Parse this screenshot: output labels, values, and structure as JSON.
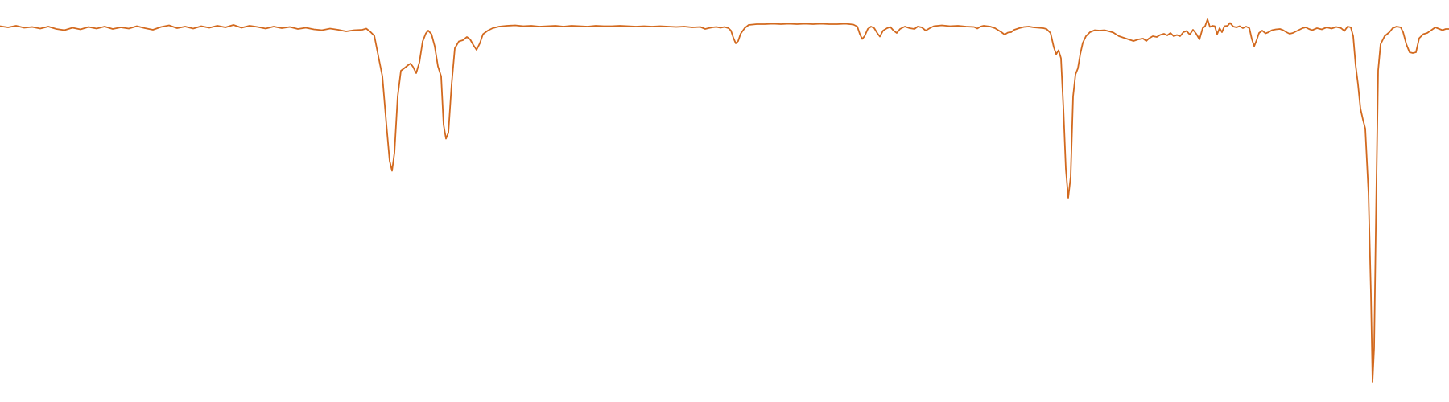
{
  "chart_data": {
    "type": "line",
    "title": "",
    "xlabel": "",
    "ylabel": "",
    "grid": false,
    "legend": "none",
    "xlim": [
      0,
      1800
    ],
    "ylim": [
      0,
      1
    ],
    "series": [
      {
        "color": "#d2691e",
        "points": [
          [
            0,
            0.935
          ],
          [
            10,
            0.932
          ],
          [
            20,
            0.936
          ],
          [
            30,
            0.931
          ],
          [
            40,
            0.933
          ],
          [
            50,
            0.929
          ],
          [
            60,
            0.934
          ],
          [
            70,
            0.928
          ],
          [
            80,
            0.925
          ],
          [
            90,
            0.931
          ],
          [
            100,
            0.927
          ],
          [
            110,
            0.933
          ],
          [
            120,
            0.929
          ],
          [
            130,
            0.934
          ],
          [
            140,
            0.928
          ],
          [
            150,
            0.932
          ],
          [
            160,
            0.929
          ],
          [
            170,
            0.935
          ],
          [
            180,
            0.93
          ],
          [
            190,
            0.926
          ],
          [
            200,
            0.933
          ],
          [
            210,
            0.937
          ],
          [
            220,
            0.93
          ],
          [
            230,
            0.934
          ],
          [
            240,
            0.929
          ],
          [
            250,
            0.935
          ],
          [
            260,
            0.931
          ],
          [
            270,
            0.936
          ],
          [
            280,
            0.932
          ],
          [
            290,
            0.938
          ],
          [
            300,
            0.931
          ],
          [
            310,
            0.936
          ],
          [
            320,
            0.933
          ],
          [
            330,
            0.929
          ],
          [
            340,
            0.934
          ],
          [
            350,
            0.93
          ],
          [
            360,
            0.933
          ],
          [
            370,
            0.928
          ],
          [
            380,
            0.931
          ],
          [
            390,
            0.927
          ],
          [
            400,
            0.925
          ],
          [
            410,
            0.929
          ],
          [
            420,
            0.926
          ],
          [
            430,
            0.922
          ],
          [
            440,
            0.925
          ],
          [
            450,
            0.926
          ],
          [
            455,
            0.929
          ],
          [
            460,
            0.921
          ],
          [
            465,
            0.911
          ],
          [
            470,
            0.86
          ],
          [
            475,
            0.81
          ],
          [
            480,
            0.69
          ],
          [
            484,
            0.6
          ],
          [
            487,
            0.575
          ],
          [
            490,
            0.62
          ],
          [
            494,
            0.76
          ],
          [
            498,
            0.824
          ],
          [
            502,
            0.83
          ],
          [
            507,
            0.838
          ],
          [
            510,
            0.842
          ],
          [
            513,
            0.834
          ],
          [
            517,
            0.818
          ],
          [
            521,
            0.845
          ],
          [
            525,
            0.897
          ],
          [
            529,
            0.917
          ],
          [
            532,
            0.924
          ],
          [
            536,
            0.915
          ],
          [
            540,
            0.885
          ],
          [
            544,
            0.835
          ],
          [
            548,
            0.81
          ],
          [
            551,
            0.69
          ],
          [
            554,
            0.655
          ],
          [
            557,
            0.67
          ],
          [
            561,
            0.79
          ],
          [
            565,
            0.88
          ],
          [
            570,
            0.897
          ],
          [
            575,
            0.9
          ],
          [
            580,
            0.908
          ],
          [
            584,
            0.902
          ],
          [
            588,
            0.888
          ],
          [
            592,
            0.876
          ],
          [
            596,
            0.892
          ],
          [
            600,
            0.915
          ],
          [
            606,
            0.924
          ],
          [
            612,
            0.93
          ],
          [
            620,
            0.934
          ],
          [
            630,
            0.936
          ],
          [
            640,
            0.937
          ],
          [
            650,
            0.935
          ],
          [
            660,
            0.936
          ],
          [
            670,
            0.934
          ],
          [
            680,
            0.935
          ],
          [
            690,
            0.936
          ],
          [
            700,
            0.934
          ],
          [
            710,
            0.936
          ],
          [
            720,
            0.935
          ],
          [
            730,
            0.934
          ],
          [
            740,
            0.936
          ],
          [
            750,
            0.935
          ],
          [
            760,
            0.935
          ],
          [
            770,
            0.936
          ],
          [
            780,
            0.935
          ],
          [
            790,
            0.934
          ],
          [
            800,
            0.935
          ],
          [
            810,
            0.934
          ],
          [
            820,
            0.935
          ],
          [
            830,
            0.934
          ],
          [
            840,
            0.933
          ],
          [
            850,
            0.934
          ],
          [
            860,
            0.932
          ],
          [
            870,
            0.933
          ],
          [
            876,
            0.928
          ],
          [
            880,
            0.93
          ],
          [
            885,
            0.932
          ],
          [
            890,
            0.933
          ],
          [
            895,
            0.931
          ],
          [
            900,
            0.933
          ],
          [
            905,
            0.93
          ],
          [
            908,
            0.924
          ],
          [
            911,
            0.906
          ],
          [
            914,
            0.892
          ],
          [
            917,
            0.898
          ],
          [
            920,
            0.916
          ],
          [
            925,
            0.93
          ],
          [
            930,
            0.938
          ],
          [
            940,
            0.94
          ],
          [
            950,
            0.94
          ],
          [
            960,
            0.941
          ],
          [
            970,
            0.94
          ],
          [
            980,
            0.941
          ],
          [
            990,
            0.94
          ],
          [
            1000,
            0.941
          ],
          [
            1010,
            0.94
          ],
          [
            1020,
            0.941
          ],
          [
            1030,
            0.94
          ],
          [
            1040,
            0.94
          ],
          [
            1050,
            0.941
          ],
          [
            1060,
            0.939
          ],
          [
            1065,
            0.934
          ],
          [
            1068,
            0.916
          ],
          [
            1071,
            0.903
          ],
          [
            1074,
            0.91
          ],
          [
            1078,
            0.928
          ],
          [
            1082,
            0.934
          ],
          [
            1086,
            0.93
          ],
          [
            1090,
            0.917
          ],
          [
            1093,
            0.909
          ],
          [
            1097,
            0.924
          ],
          [
            1102,
            0.93
          ],
          [
            1106,
            0.933
          ],
          [
            1110,
            0.924
          ],
          [
            1114,
            0.918
          ],
          [
            1118,
            0.928
          ],
          [
            1124,
            0.934
          ],
          [
            1130,
            0.93
          ],
          [
            1136,
            0.928
          ],
          [
            1140,
            0.934
          ],
          [
            1145,
            0.932
          ],
          [
            1150,
            0.924
          ],
          [
            1155,
            0.93
          ],
          [
            1160,
            0.935
          ],
          [
            1170,
            0.937
          ],
          [
            1180,
            0.935
          ],
          [
            1190,
            0.936
          ],
          [
            1200,
            0.934
          ],
          [
            1210,
            0.933
          ],
          [
            1214,
            0.929
          ],
          [
            1218,
            0.934
          ],
          [
            1222,
            0.936
          ],
          [
            1230,
            0.934
          ],
          [
            1236,
            0.93
          ],
          [
            1240,
            0.925
          ],
          [
            1244,
            0.92
          ],
          [
            1248,
            0.914
          ],
          [
            1252,
            0.919
          ],
          [
            1256,
            0.92
          ],
          [
            1260,
            0.926
          ],
          [
            1266,
            0.93
          ],
          [
            1272,
            0.933
          ],
          [
            1278,
            0.934
          ],
          [
            1284,
            0.932
          ],
          [
            1290,
            0.931
          ],
          [
            1296,
            0.93
          ],
          [
            1300,
            0.928
          ],
          [
            1305,
            0.918
          ],
          [
            1309,
            0.883
          ],
          [
            1312,
            0.865
          ],
          [
            1315,
            0.875
          ],
          [
            1318,
            0.855
          ],
          [
            1321,
            0.73
          ],
          [
            1324,
            0.58
          ],
          [
            1327,
            0.508
          ],
          [
            1330,
            0.56
          ],
          [
            1333,
            0.76
          ],
          [
            1336,
            0.815
          ],
          [
            1339,
            0.83
          ],
          [
            1342,
            0.866
          ],
          [
            1345,
            0.893
          ],
          [
            1349,
            0.91
          ],
          [
            1354,
            0.92
          ],
          [
            1360,
            0.925
          ],
          [
            1366,
            0.924
          ],
          [
            1372,
            0.925
          ],
          [
            1378,
            0.922
          ],
          [
            1383,
            0.919
          ],
          [
            1390,
            0.91
          ],
          [
            1396,
            0.906
          ],
          [
            1402,
            0.902
          ],
          [
            1408,
            0.898
          ],
          [
            1414,
            0.902
          ],
          [
            1420,
            0.904
          ],
          [
            1424,
            0.898
          ],
          [
            1427,
            0.904
          ],
          [
            1432,
            0.91
          ],
          [
            1437,
            0.908
          ],
          [
            1441,
            0.913
          ],
          [
            1446,
            0.916
          ],
          [
            1450,
            0.912
          ],
          [
            1454,
            0.918
          ],
          [
            1458,
            0.91
          ],
          [
            1462,
            0.913
          ],
          [
            1466,
            0.91
          ],
          [
            1470,
            0.92
          ],
          [
            1474,
            0.923
          ],
          [
            1478,
            0.914
          ],
          [
            1482,
            0.926
          ],
          [
            1486,
            0.916
          ],
          [
            1490,
            0.902
          ],
          [
            1494,
            0.93
          ],
          [
            1497,
            0.935
          ],
          [
            1500,
            0.952
          ],
          [
            1503,
            0.933
          ],
          [
            1506,
            0.936
          ],
          [
            1509,
            0.935
          ],
          [
            1512,
            0.915
          ],
          [
            1515,
            0.93
          ],
          [
            1518,
            0.92
          ],
          [
            1521,
            0.935
          ],
          [
            1525,
            0.936
          ],
          [
            1528,
            0.943
          ],
          [
            1532,
            0.934
          ],
          [
            1536,
            0.932
          ],
          [
            1540,
            0.935
          ],
          [
            1544,
            0.93
          ],
          [
            1548,
            0.934
          ],
          [
            1552,
            0.93
          ],
          [
            1555,
            0.903
          ],
          [
            1558,
            0.885
          ],
          [
            1561,
            0.9
          ],
          [
            1564,
            0.918
          ],
          [
            1568,
            0.924
          ],
          [
            1572,
            0.917
          ],
          [
            1576,
            0.92
          ],
          [
            1580,
            0.925
          ],
          [
            1585,
            0.927
          ],
          [
            1590,
            0.928
          ],
          [
            1594,
            0.925
          ],
          [
            1598,
            0.92
          ],
          [
            1602,
            0.916
          ],
          [
            1606,
            0.918
          ],
          [
            1610,
            0.922
          ],
          [
            1614,
            0.926
          ],
          [
            1618,
            0.93
          ],
          [
            1622,
            0.932
          ],
          [
            1626,
            0.928
          ],
          [
            1630,
            0.925
          ],
          [
            1636,
            0.93
          ],
          [
            1642,
            0.927
          ],
          [
            1648,
            0.932
          ],
          [
            1654,
            0.929
          ],
          [
            1660,
            0.933
          ],
          [
            1666,
            0.93
          ],
          [
            1670,
            0.923
          ],
          [
            1674,
            0.934
          ],
          [
            1678,
            0.932
          ],
          [
            1681,
            0.91
          ],
          [
            1684,
            0.838
          ],
          [
            1687,
            0.79
          ],
          [
            1690,
            0.73
          ],
          [
            1693,
            0.703
          ],
          [
            1696,
            0.68
          ],
          [
            1700,
            0.52
          ],
          [
            1703,
            0.27
          ],
          [
            1705,
            0.05
          ],
          [
            1707,
            0.135
          ],
          [
            1710,
            0.56
          ],
          [
            1712,
            0.825
          ],
          [
            1715,
            0.89
          ],
          [
            1720,
            0.91
          ],
          [
            1726,
            0.92
          ],
          [
            1730,
            0.93
          ],
          [
            1735,
            0.934
          ],
          [
            1740,
            0.932
          ],
          [
            1743,
            0.92
          ],
          [
            1747,
            0.89
          ],
          [
            1751,
            0.87
          ],
          [
            1755,
            0.868
          ],
          [
            1759,
            0.87
          ],
          [
            1763,
            0.905
          ],
          [
            1768,
            0.915
          ],
          [
            1773,
            0.918
          ],
          [
            1778,
            0.925
          ],
          [
            1783,
            0.932
          ],
          [
            1788,
            0.928
          ],
          [
            1792,
            0.925
          ],
          [
            1796,
            0.928
          ],
          [
            1800,
            0.928
          ]
        ]
      }
    ]
  }
}
